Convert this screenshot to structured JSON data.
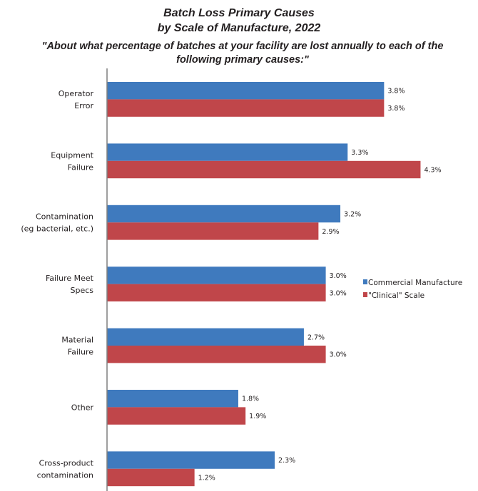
{
  "chart_data": {
    "type": "bar",
    "orientation": "horizontal",
    "title": "Batch Loss Primary Causes",
    "title_line2": "by Scale of Manufacture, 2022",
    "subtitle": "\"About what percentage of batches at your facility are lost annually to each of the following primary causes:\"",
    "categories": [
      [
        "Operator",
        "Error"
      ],
      [
        "Equipment",
        "Failure"
      ],
      [
        "Contamination",
        "(eg bacterial, etc.)"
      ],
      [
        "Failure Meet",
        "Specs"
      ],
      [
        "Material",
        "Failure"
      ],
      [
        "Other"
      ],
      [
        "Cross-product",
        "contamination"
      ]
    ],
    "series": [
      {
        "name": "Commercial Manufacture",
        "color": "#3f7abe",
        "values": [
          3.8,
          3.3,
          3.2,
          3.0,
          2.7,
          1.8,
          2.3
        ],
        "labels": [
          "3.8%",
          "3.3%",
          "3.2%",
          "3.0%",
          "2.7%",
          "1.8%",
          "2.3%"
        ]
      },
      {
        "name": "\"Clinical\" Scale",
        "color": "#c0464a",
        "values": [
          3.8,
          4.3,
          2.9,
          3.0,
          3.0,
          1.9,
          1.2
        ],
        "labels": [
          "3.8%",
          "4.3%",
          "2.9%",
          "3.0%",
          "3.0%",
          "1.9%",
          "1.2%"
        ]
      }
    ],
    "xlim": [
      0,
      4.5
    ],
    "value_unit": "%",
    "grid": false,
    "legend_position": "right"
  }
}
